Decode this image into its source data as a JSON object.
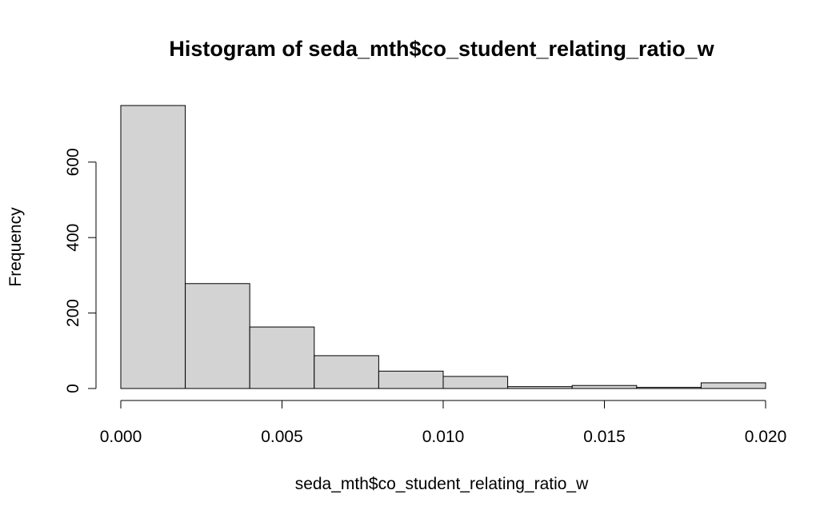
{
  "chart_data": {
    "type": "histogram",
    "title": "Histogram of seda_mth$co_student_relating_ratio_w",
    "xlabel": "seda_mth$co_student_relating_ratio_w",
    "ylabel": "Frequency",
    "bins": [
      {
        "start": 0.0,
        "end": 0.002,
        "count": 750
      },
      {
        "start": 0.002,
        "end": 0.004,
        "count": 278
      },
      {
        "start": 0.004,
        "end": 0.006,
        "count": 163
      },
      {
        "start": 0.006,
        "end": 0.008,
        "count": 87
      },
      {
        "start": 0.008,
        "end": 0.01,
        "count": 46
      },
      {
        "start": 0.01,
        "end": 0.012,
        "count": 32
      },
      {
        "start": 0.012,
        "end": 0.014,
        "count": 5
      },
      {
        "start": 0.014,
        "end": 0.016,
        "count": 8
      },
      {
        "start": 0.016,
        "end": 0.018,
        "count": 3
      },
      {
        "start": 0.018,
        "end": 0.02,
        "count": 15
      }
    ],
    "xlim": [
      0.0,
      0.02
    ],
    "ylim": [
      0,
      750
    ],
    "x_ticks": [
      0.0,
      0.005,
      0.01,
      0.015,
      0.02
    ],
    "x_tick_labels": [
      "0.000",
      "0.005",
      "0.010",
      "0.015",
      "0.020"
    ],
    "y_ticks": [
      0,
      200,
      400,
      600
    ],
    "y_tick_labels": [
      "0",
      "200",
      "400",
      "600"
    ],
    "bar_fill": "#d3d3d3",
    "bar_stroke": "#000000",
    "grid": false,
    "legend": "none"
  }
}
